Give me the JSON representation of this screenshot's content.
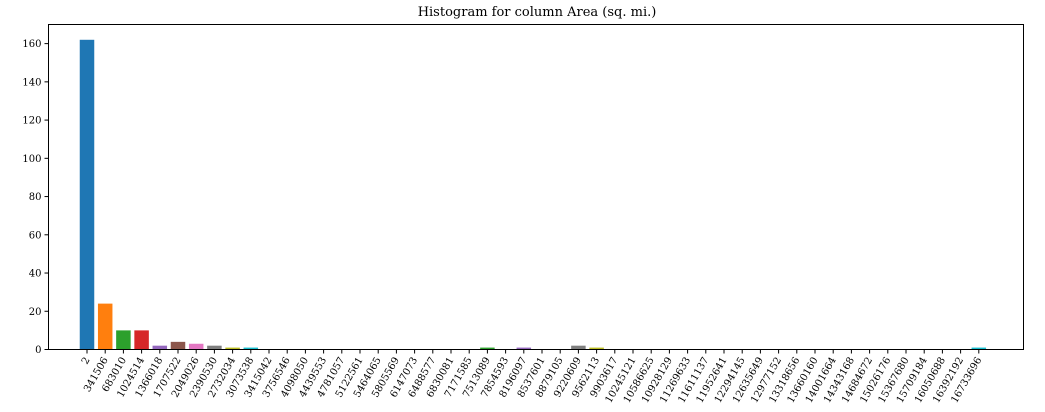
{
  "chart_data": {
    "type": "bar",
    "title": "Histogram for column Area (sq. mi.)",
    "xlabel": "",
    "ylabel": "",
    "ylim": [
      0,
      170
    ],
    "yticks": [
      0,
      20,
      40,
      60,
      80,
      100,
      120,
      140,
      160
    ],
    "grid": false,
    "categories": [
      "2",
      "341506",
      "683010",
      "1024514",
      "1366018",
      "1707522",
      "2049026",
      "2390530",
      "2732034",
      "3073538",
      "3415042",
      "3756546",
      "4098050",
      "4439553",
      "4781057",
      "5122561",
      "5464065",
      "5805569",
      "6147073",
      "6488577",
      "6830081",
      "7171585",
      "7513089",
      "7854593",
      "8196097",
      "8537601",
      "8879105",
      "9220609",
      "9562113",
      "9903617",
      "10245121",
      "10586625",
      "10928129",
      "11269633",
      "11611137",
      "11952641",
      "12294145",
      "12635649",
      "12977152",
      "13318656",
      "13660160",
      "14001664",
      "14343168",
      "14684672",
      "15026176",
      "15367680",
      "15709184",
      "16050688",
      "16392192",
      "16733696"
    ],
    "values": [
      162,
      24,
      10,
      10,
      2,
      4,
      3,
      2,
      1,
      1,
      0,
      0,
      0,
      0,
      0,
      0,
      0,
      0,
      0,
      0,
      0,
      0,
      1,
      0,
      1,
      0,
      0,
      2,
      1,
      0,
      0,
      0,
      0,
      0,
      0,
      0,
      0,
      0,
      0,
      0,
      0,
      0,
      0,
      0,
      0,
      0,
      0,
      0,
      0,
      1
    ],
    "colors": [
      "#1f77b4",
      "#ff7f0e",
      "#2ca02c",
      "#d62728",
      "#9467bd",
      "#8c564b",
      "#e377c2",
      "#7f7f7f",
      "#bcbd22",
      "#17becf"
    ]
  }
}
